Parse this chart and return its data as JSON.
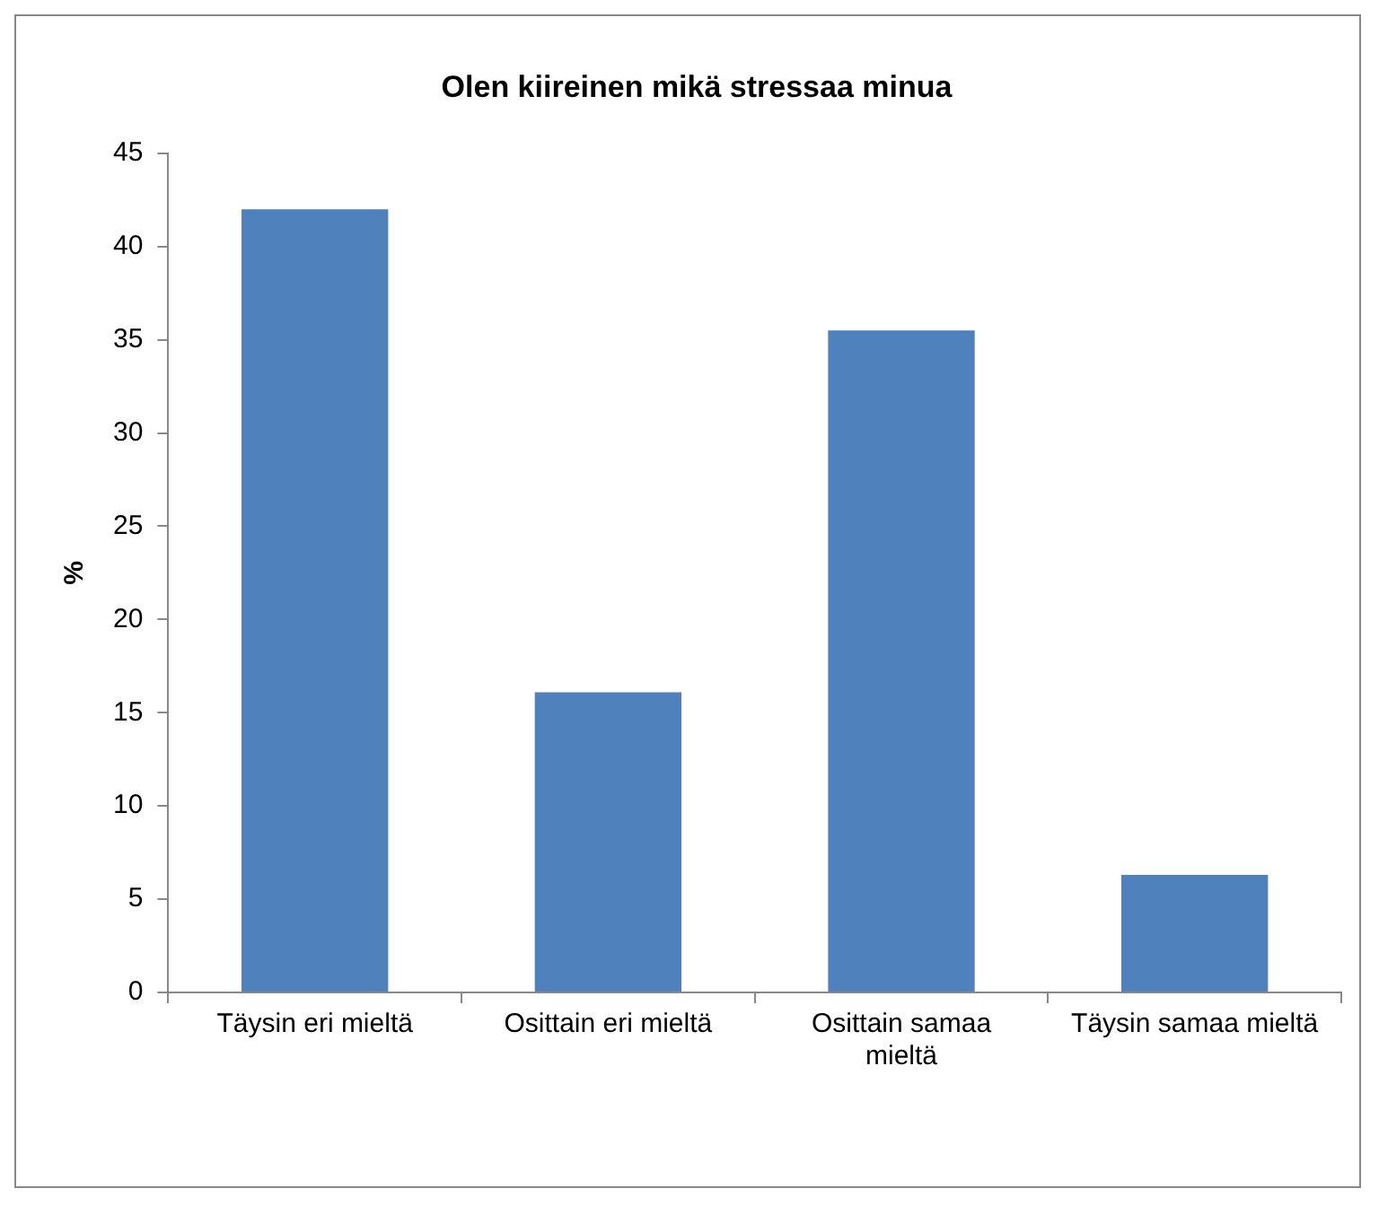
{
  "chart_data": {
    "type": "bar",
    "title": "Olen kiireinen mikä stressaa minua",
    "ylabel": "%",
    "categories": [
      "Täysin eri mieltä",
      "Osittain eri mieltä",
      "Osittain samaa mieltä",
      "Täysin samaa mieltä"
    ],
    "values": [
      42,
      16.1,
      35.5,
      6.3
    ],
    "color": "#4f81bd",
    "ylim": [
      0,
      45
    ],
    "yticks": [
      0,
      5,
      10,
      15,
      20,
      25,
      30,
      35,
      40,
      45
    ],
    "grid": false,
    "legend": false
  }
}
